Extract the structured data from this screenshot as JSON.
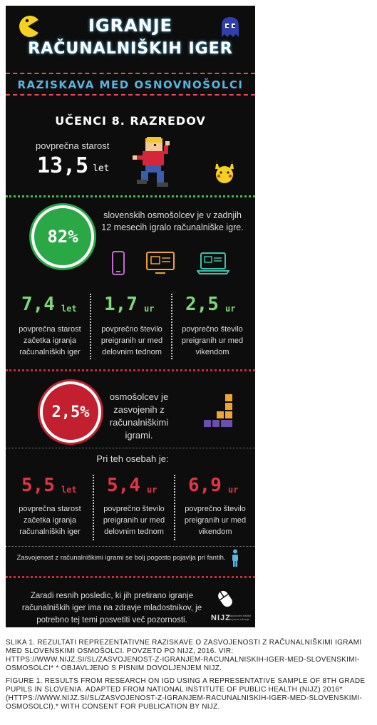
{
  "header": {
    "title_line1": "IGRANJE",
    "title_line2": "RAČUNALNIŠKIH IGER",
    "subtitle": "RAZISKAVA MED OSNOVNOŠOLCI",
    "grade": "UČENCI 8. RAZREDOV"
  },
  "age": {
    "label": "povprečna starost",
    "value": "13,5",
    "unit": "let"
  },
  "gaming": {
    "percent": "82%",
    "text": "slovenskih osmošolcev je v zadnjih 12 mesecih igralo računalniške igre.",
    "devices": [
      "phone-icon",
      "monitor-icon",
      "laptop-icon"
    ],
    "stats": [
      {
        "value": "7,4",
        "unit": "let",
        "label": "povprečna starost začetka igranja računalniških iger"
      },
      {
        "value": "1,7",
        "unit": "ur",
        "label": "povprečno število preigranih ur med delovnim tednom"
      },
      {
        "value": "2,5",
        "unit": "ur",
        "label": "povprečno število preigranih ur med vikendom"
      }
    ]
  },
  "addiction": {
    "percent": "2,5%",
    "text": "osmošolcev je zasvojenih z računalniškimi igrami.",
    "persons_title": "Pri teh osebah je:",
    "stats": [
      {
        "value": "5,5",
        "unit": "let",
        "label": "povprečna starost začetka igranja računalniških iger"
      },
      {
        "value": "5,4",
        "unit": "ur",
        "label": "povprečno število preigranih ur med delovnim tednom"
      },
      {
        "value": "6,9",
        "unit": "ur",
        "label": "povprečno število preigranih ur med vikendom"
      }
    ],
    "note": "Zasvojenost z računalniškimi igrami se bolj pogosto pojavlja pri fantih."
  },
  "footer": {
    "text": "Zaradi resnih posledic, ki jih pretirano igranje računalniških iger ima na zdravje mladostnikov, je potrebno tej temi posvetiti več pozornosti.",
    "logo": "NIJZ",
    "logo_sub": "Nacionalni inštitut za javno zdravje"
  },
  "colors": {
    "background": "#0d0d0d",
    "green": "#2aa845",
    "red": "#c2202f",
    "blue": "#5bb4e0"
  },
  "captions": {
    "slovene": "SLIKA 1. REZULTATI REPREZENTATIVNE RAZISKAVE O ZASVOJENOSTI Z RAČUNALNIŠKIMI IGRAMI MED SLOVENSKIMI OSMOŠOLCI. POVZETO PO NIJZ, 2016. VIR: HTTPS://WWW.NIJZ.SI/SL/ZASVOJENOST-Z-IGRANJEM-RACUNALNISKIH-IGER-MED-SLOVENSKIMI-OSMOSOLCI* * OBJAVLJENO S PISNIM DOVOLJENJEM NIJZ.",
    "english": "FIGURE 1. RESULTS FROM RESEARCH ON IGD USING A REPRESENTATIVE SAMPLE OF 8TH GRADE PUPILS IN SLOVENIA. ADAPTED FROM NATIONAL INSTITUTE OF PUBLIC HEALTH (NIJZ) 2016* (HTTPS://WWW.NIJZ.SI/SL/ZASVOJENOST-Z-IGRANJEM-RACUNALNISKIH-IGER-MED-SLOVENSKIMI-OSMOSOLCI).* WITH CONSENT FOR PUBLICATION BY NIJZ."
  }
}
